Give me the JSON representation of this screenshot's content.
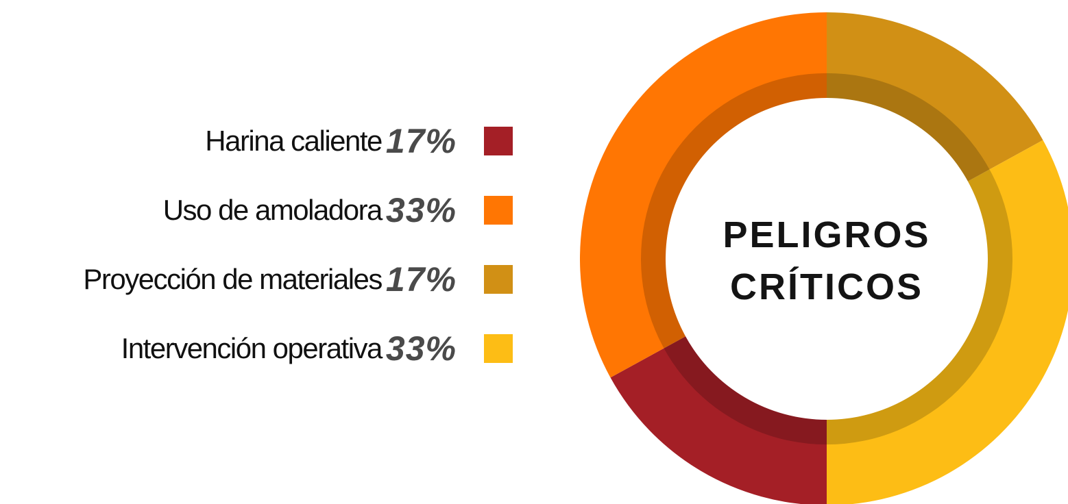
{
  "chart_data": {
    "type": "donut",
    "title": "PELIGROS CRÍTICOS",
    "categories": [
      "Harina caliente",
      "Uso de amoladora",
      "Proyección de materiales",
      "Intervención operativa"
    ],
    "values": [
      17,
      33,
      17,
      33
    ],
    "value_labels": [
      "17%",
      "33%",
      "17%",
      "33%"
    ],
    "colors": [
      "#a41f26",
      "#ff7603",
      "#d19015",
      "#fdbd15"
    ]
  }
}
